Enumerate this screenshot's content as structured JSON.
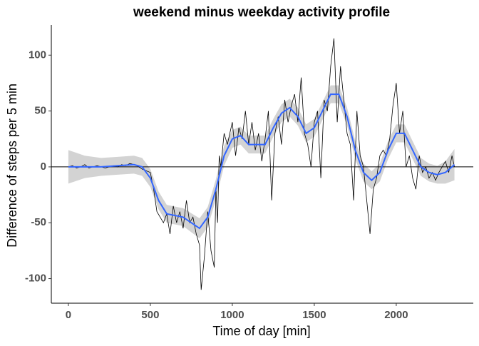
{
  "chart_data": {
    "type": "line",
    "title": "weekend minus weekday activity profile",
    "x_label": "Time of day [min]",
    "y_label": "Difference of steps per 5 min",
    "xlim": [
      -104,
      2470
    ],
    "ylim": [
      -122,
      127
    ],
    "xticks": [
      0,
      500,
      1000,
      1500,
      2000
    ],
    "yticks": [
      -100,
      -50,
      0,
      50,
      100
    ],
    "hline": 0,
    "hline_color": "#000000",
    "raw": {
      "color": "#000000",
      "x": [
        0,
        25,
        50,
        75,
        100,
        125,
        150,
        175,
        200,
        225,
        250,
        275,
        300,
        325,
        350,
        375,
        400,
        420,
        450,
        500,
        520,
        540,
        560,
        580,
        600,
        620,
        640,
        660,
        680,
        700,
        720,
        740,
        760,
        780,
        800,
        810,
        830,
        850,
        870,
        890,
        900,
        910,
        920,
        930,
        950,
        970,
        1000,
        1020,
        1040,
        1060,
        1080,
        1100,
        1120,
        1140,
        1160,
        1180,
        1200,
        1220,
        1240,
        1260,
        1280,
        1300,
        1320,
        1340,
        1360,
        1380,
        1400,
        1420,
        1440,
        1460,
        1480,
        1500,
        1520,
        1540,
        1560,
        1580,
        1600,
        1620,
        1640,
        1660,
        1680,
        1700,
        1720,
        1740,
        1760,
        1780,
        1800,
        1820,
        1840,
        1860,
        1880,
        1900,
        1920,
        1940,
        1960,
        1980,
        2000,
        2020,
        2040,
        2060,
        2080,
        2100,
        2120,
        2140,
        2160,
        2180,
        2200,
        2220,
        2240,
        2260,
        2280,
        2300,
        2320,
        2340,
        2355
      ],
      "values": [
        0,
        1,
        -1,
        0,
        2,
        -1,
        0,
        1,
        0,
        -1,
        0,
        1,
        0,
        2,
        1,
        3,
        2,
        1,
        -2,
        -5,
        -20,
        -40,
        -45,
        -50,
        -42,
        -60,
        -35,
        -50,
        -40,
        -55,
        -30,
        -50,
        -45,
        -60,
        -70,
        -110,
        -80,
        -40,
        -75,
        -90,
        -20,
        -50,
        10,
        0,
        30,
        20,
        40,
        10,
        35,
        25,
        50,
        20,
        40,
        15,
        30,
        5,
        25,
        50,
        -30,
        30,
        45,
        20,
        60,
        40,
        55,
        65,
        40,
        80,
        30,
        20,
        0,
        40,
        50,
        -10,
        60,
        50,
        90,
        115,
        40,
        90,
        60,
        30,
        20,
        -30,
        50,
        10,
        0,
        -30,
        -60,
        -20,
        -10,
        10,
        15,
        10,
        25,
        55,
        75,
        30,
        50,
        0,
        10,
        -10,
        -20,
        10,
        -5,
        0,
        -10,
        -5,
        -12,
        -5,
        0,
        5,
        -5,
        10,
        0
      ]
    },
    "smooth": {
      "color": "#3366ff",
      "band_color": "#d3d3d3",
      "x": [
        0,
        100,
        200,
        300,
        400,
        450,
        500,
        550,
        600,
        700,
        800,
        850,
        900,
        950,
        1000,
        1050,
        1100,
        1200,
        1250,
        1300,
        1350,
        1400,
        1450,
        1500,
        1550,
        1600,
        1650,
        1700,
        1750,
        1800,
        1850,
        1900,
        1950,
        2000,
        2050,
        2100,
        2150,
        2200,
        2250,
        2300,
        2355
      ],
      "values": [
        0,
        0,
        0,
        1,
        2,
        0,
        -10,
        -30,
        -42,
        -45,
        -55,
        -45,
        -20,
        10,
        25,
        28,
        20,
        20,
        35,
        48,
        53,
        45,
        30,
        35,
        50,
        65,
        65,
        45,
        15,
        -5,
        -12,
        -5,
        15,
        30,
        30,
        15,
        0,
        -5,
        -7,
        -5,
        2
      ],
      "upper": [
        15,
        10,
        8,
        9,
        10,
        8,
        -2,
        -22,
        -34,
        -37,
        -46,
        -36,
        -11,
        19,
        33,
        36,
        28,
        28,
        43,
        56,
        61,
        53,
        38,
        43,
        58,
        73,
        73,
        53,
        23,
        3,
        -4,
        3,
        23,
        38,
        38,
        23,
        8,
        3,
        1,
        5,
        16
      ],
      "lower": [
        -15,
        -10,
        -8,
        -7,
        -6,
        -8,
        -18,
        -38,
        -50,
        -53,
        -64,
        -54,
        -29,
        1,
        17,
        20,
        12,
        12,
        27,
        40,
        45,
        37,
        22,
        27,
        42,
        57,
        57,
        37,
        7,
        -13,
        -20,
        -13,
        7,
        22,
        22,
        7,
        -8,
        -13,
        -15,
        -15,
        -12
      ]
    }
  }
}
